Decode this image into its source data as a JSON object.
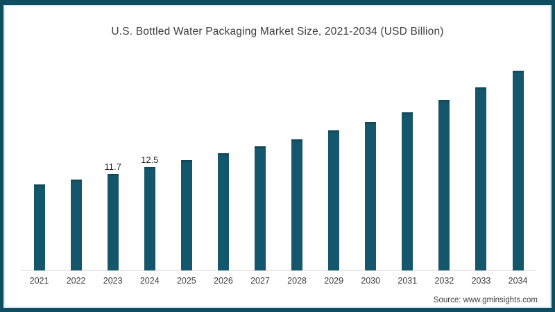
{
  "frame": {
    "border_color": "#0f4d61",
    "inner_line_color": "#d5eaf3"
  },
  "chart_data": {
    "type": "bar",
    "title": "U.S. Bottled Water Packaging Market Size, 2021-2034 (USD Billion)",
    "categories": [
      "2021",
      "2022",
      "2023",
      "2024",
      "2025",
      "2026",
      "2027",
      "2028",
      "2029",
      "2030",
      "2031",
      "2032",
      "2033",
      "2034"
    ],
    "values": [
      10.4,
      11.0,
      11.7,
      12.5,
      13.4,
      14.2,
      15.0,
      15.9,
      17.0,
      18.0,
      19.2,
      20.7,
      22.2,
      24.2
    ],
    "data_labels": [
      "",
      "",
      "11.7",
      "12.5",
      "",
      "",
      "",
      "",
      "",
      "",
      "",
      "",
      "",
      ""
    ],
    "xlabel": "",
    "ylabel": "",
    "ylim": [
      0,
      24.5
    ],
    "grid": false,
    "legend": false,
    "bar_color": "#14566b",
    "axis_line_color": "#d9d9d9"
  },
  "source": {
    "label": "Source: www.gminsights.com"
  }
}
